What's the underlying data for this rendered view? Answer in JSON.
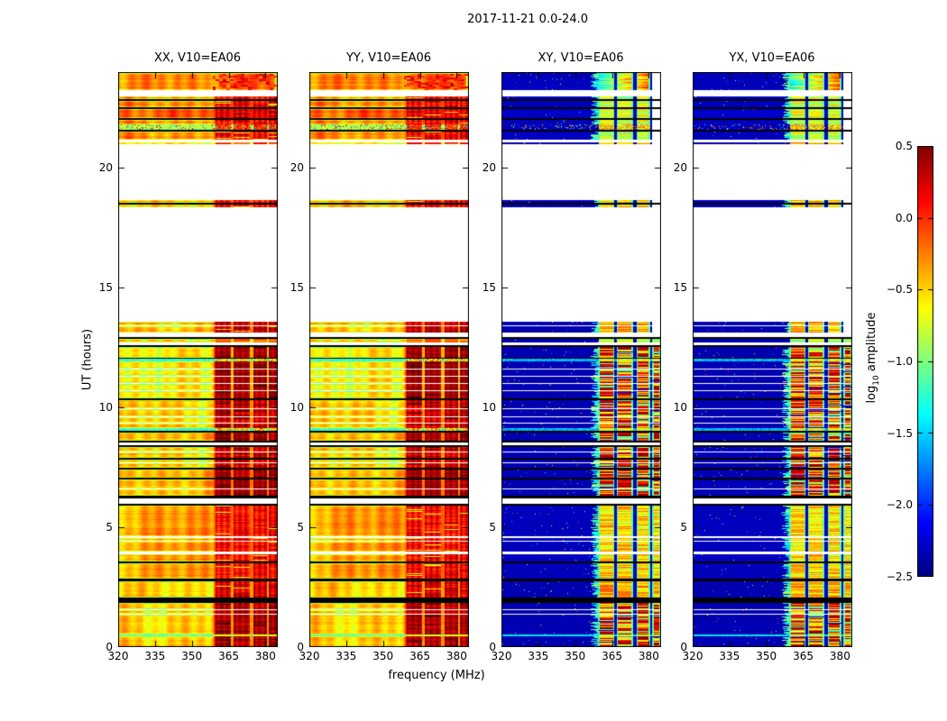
{
  "figure": {
    "title": "2017-11-21 0.0-24.0"
  },
  "axes": {
    "xlabel": "frequency (MHz)",
    "ylabel": "UT (hours)"
  },
  "colorbar": {
    "label_prefix": "log",
    "label_sub": "10",
    "label_suffix": " amplitude",
    "ticks": [
      "0.5",
      "0.0",
      "−0.5",
      "−1.0",
      "−1.5",
      "−2.0",
      "−2.5"
    ],
    "tick_values": [
      0.5,
      0.0,
      -0.5,
      -1.0,
      -1.5,
      -2.0,
      -2.5
    ],
    "vmin": -2.5,
    "vmax": 0.5,
    "cmap": "jet"
  },
  "chart_data": {
    "type": "heatmap",
    "date": "2017-11-21",
    "time_range_hours": [
      0.0,
      24.0
    ],
    "panels": [
      {
        "label": "XX, V10=EA06",
        "pol": "XX",
        "palette": "warm"
      },
      {
        "label": "YY, V10=EA06",
        "pol": "YY",
        "palette": "warm"
      },
      {
        "label": "XY, V10=EA06",
        "pol": "XY",
        "palette": "cold"
      },
      {
        "label": "YX, V10=EA06",
        "pol": "YX",
        "palette": "cold"
      }
    ],
    "x": {
      "label": "frequency (MHz)",
      "range": [
        320,
        385
      ],
      "ticks": [
        320,
        335,
        350,
        365,
        380
      ]
    },
    "y": {
      "label": "UT (hours)",
      "range": [
        0,
        24
      ],
      "ticks": [
        0,
        5,
        10,
        15,
        20
      ]
    },
    "z": {
      "label": "log10 amplitude",
      "range": [
        -2.5,
        0.5
      ]
    },
    "rfi_groups_mhz": [
      [
        359.5,
        366.0
      ],
      [
        367.0,
        373.5
      ],
      [
        375.0,
        380.5
      ],
      [
        381.5,
        384.6
      ]
    ],
    "styles": {
      "A": {
        "warm": 0.74,
        "rfiWarm": 0.84,
        "cold": 0.06,
        "rfiCold": 0.6,
        "mottled": true
      },
      "B": {
        "warm": 0.74,
        "rfiWarm": 0.88,
        "cold": 0.06,
        "rfiCold": 0.58
      },
      "C": {
        "warm": 0.79,
        "rfiWarm": 0.9,
        "cold": 0.07,
        "rfiCold": 0.6
      },
      "D": {
        "warm": 0.73,
        "rfiWarm": 0.88,
        "cold": 0.06,
        "rfiCold": 0.66
      },
      "E": {
        "warm": 0.69,
        "rfiWarm": 0.93,
        "cold": 0.05,
        "rfiCold": 0.7
      },
      "F": {
        "warm": 0.635,
        "rfiWarm": 0.97,
        "cold": 0.05,
        "rfiCold": 0.82,
        "core": true
      },
      "G": {
        "warm": 0.675,
        "rfiWarm": 0.92,
        "cold": 0.05,
        "rfiCold": 0.78,
        "core": true
      },
      "H": {
        "warm": 0.7,
        "rfiWarm": 0.965,
        "cold": 0.05,
        "rfiCold": 0.8,
        "core": true
      },
      "I": {
        "warm": 0.72,
        "rfiWarm": 0.875,
        "cold": 0.06,
        "rfiCold": 0.66
      },
      "J": {
        "warm": 0.66,
        "rfiWarm": 0.9,
        "cold": 0.05,
        "rfiCold": 0.7
      },
      "K": {
        "warm": 0.675,
        "rfiWarm": 0.95,
        "cold": 0.05,
        "rfiCold": 0.83,
        "core": true
      },
      "T1": {
        "warm": 0.72,
        "rfiWarm": 0.9,
        "cold": 0.05,
        "rfiCold": 0.7,
        "dash": true
      },
      "T2": {
        "warm": 0.66,
        "rfiWarm": 0.8,
        "cold": 0.05,
        "rfiCold": 0.55,
        "dash": true
      },
      "S1": {
        "speckle": "warm"
      },
      "S2": {
        "speckle": "cyan"
      }
    },
    "bands": [
      [
        24.0,
        23.25,
        "A"
      ],
      [
        23.25,
        22.97,
        "w"
      ],
      [
        22.97,
        22.88,
        "B"
      ],
      [
        22.88,
        22.81,
        "k"
      ],
      [
        22.81,
        22.53,
        "B"
      ],
      [
        22.53,
        22.45,
        "k"
      ],
      [
        22.45,
        22.08,
        "C"
      ],
      [
        22.08,
        22.01,
        "k"
      ],
      [
        22.01,
        21.8,
        "B"
      ],
      [
        21.8,
        21.58,
        "S1"
      ],
      [
        21.58,
        21.51,
        "k"
      ],
      [
        21.51,
        21.18,
        "B"
      ],
      [
        21.18,
        21.08,
        "w"
      ],
      [
        21.08,
        20.99,
        "T1"
      ],
      [
        20.99,
        18.65,
        "w"
      ],
      [
        18.65,
        18.53,
        "D"
      ],
      [
        18.53,
        18.47,
        "k"
      ],
      [
        18.47,
        18.35,
        "D"
      ],
      [
        18.35,
        13.58,
        "w"
      ],
      [
        13.58,
        13.43,
        "E"
      ],
      [
        13.43,
        13.38,
        "w"
      ],
      [
        13.38,
        13.11,
        "E"
      ],
      [
        13.11,
        12.93,
        "w"
      ],
      [
        12.93,
        12.86,
        "k"
      ],
      [
        12.86,
        12.73,
        "T2"
      ],
      [
        12.73,
        12.59,
        "w"
      ],
      [
        12.59,
        12.51,
        "k"
      ],
      [
        12.51,
        12.09,
        "F"
      ],
      [
        12.09,
        12.02,
        "k"
      ],
      [
        12.02,
        11.91,
        "S2"
      ],
      [
        11.91,
        11.63,
        "F"
      ],
      [
        11.63,
        11.59,
        "wl"
      ],
      [
        11.59,
        11.33,
        "F"
      ],
      [
        11.33,
        11.29,
        "wl"
      ],
      [
        11.29,
        11.03,
        "F"
      ],
      [
        11.03,
        10.99,
        "wl"
      ],
      [
        10.99,
        10.73,
        "F"
      ],
      [
        10.73,
        10.69,
        "wl"
      ],
      [
        10.69,
        10.39,
        "F"
      ],
      [
        10.39,
        10.29,
        "k"
      ],
      [
        10.29,
        9.96,
        "G"
      ],
      [
        9.96,
        9.92,
        "wl"
      ],
      [
        9.92,
        9.63,
        "G"
      ],
      [
        9.63,
        9.59,
        "wl"
      ],
      [
        9.59,
        9.36,
        "G"
      ],
      [
        9.36,
        9.32,
        "wl"
      ],
      [
        9.32,
        9.13,
        "G"
      ],
      [
        9.13,
        9.03,
        "S2"
      ],
      [
        9.03,
        8.96,
        "k"
      ],
      [
        8.96,
        8.63,
        "H"
      ],
      [
        8.63,
        8.55,
        "k"
      ],
      [
        8.55,
        8.41,
        "w"
      ],
      [
        8.41,
        8.34,
        "k"
      ],
      [
        8.34,
        8.18,
        "G"
      ],
      [
        8.18,
        8.14,
        "wl"
      ],
      [
        8.14,
        7.89,
        "G"
      ],
      [
        7.89,
        7.84,
        "k"
      ],
      [
        7.84,
        7.71,
        "G"
      ],
      [
        7.71,
        7.67,
        "wl"
      ],
      [
        7.67,
        7.49,
        "G"
      ],
      [
        7.49,
        7.41,
        "k"
      ],
      [
        7.41,
        7.06,
        "H"
      ],
      [
        7.06,
        6.98,
        "k"
      ],
      [
        6.98,
        6.61,
        "H"
      ],
      [
        6.61,
        6.57,
        "wl"
      ],
      [
        6.57,
        6.33,
        "H"
      ],
      [
        6.33,
        6.21,
        "k"
      ],
      [
        6.21,
        5.98,
        "w"
      ],
      [
        5.98,
        5.91,
        "k"
      ],
      [
        5.91,
        4.61,
        "I"
      ],
      [
        4.61,
        4.57,
        "wl"
      ],
      [
        4.57,
        4.45,
        "I"
      ],
      [
        4.45,
        4.41,
        "wl"
      ],
      [
        4.41,
        3.98,
        "I"
      ],
      [
        3.98,
        3.86,
        "w"
      ],
      [
        3.86,
        3.59,
        "I"
      ],
      [
        3.59,
        3.51,
        "k"
      ],
      [
        3.51,
        2.87,
        "I"
      ],
      [
        2.87,
        2.73,
        "k"
      ],
      [
        2.73,
        2.06,
        "J"
      ],
      [
        2.06,
        1.86,
        "k"
      ],
      [
        1.86,
        1.58,
        "K"
      ],
      [
        1.58,
        1.54,
        "wl"
      ],
      [
        1.54,
        1.39,
        "K"
      ],
      [
        1.39,
        1.35,
        "wl"
      ],
      [
        1.35,
        0.51,
        "K"
      ],
      [
        0.51,
        0.46,
        "cl"
      ],
      [
        0.46,
        0.0,
        "K"
      ]
    ]
  }
}
